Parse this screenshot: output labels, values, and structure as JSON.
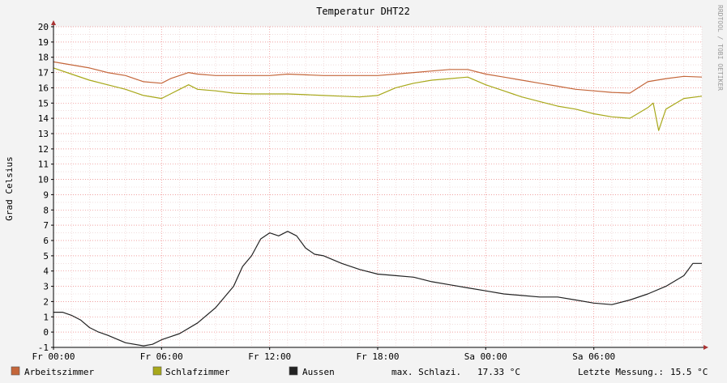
{
  "chart_data": {
    "type": "line",
    "title": "Temperatur DHT22",
    "ylabel": "Grad Celsius",
    "watermark": "RRDTOOL / TOBI OETIKER",
    "ylim": [
      -1,
      20
    ],
    "yticks": [
      -1,
      0,
      1,
      2,
      3,
      4,
      5,
      6,
      7,
      8,
      9,
      10,
      11,
      12,
      13,
      14,
      15,
      16,
      17,
      18,
      19,
      20
    ],
    "xlim_hours": [
      0,
      36
    ],
    "xticks": [
      {
        "h": 0,
        "label": "Fr 00:00"
      },
      {
        "h": 6,
        "label": "Fr 06:00"
      },
      {
        "h": 12,
        "label": "Fr 12:00"
      },
      {
        "h": 18,
        "label": "Fr 18:00"
      },
      {
        "h": 24,
        "label": "Sa 00:00"
      },
      {
        "h": 30,
        "label": "Sa 06:00"
      }
    ],
    "grid": true,
    "series": [
      {
        "name": "Arbeitszimmer",
        "color": "#c4663a",
        "points": [
          [
            0,
            17.7
          ],
          [
            1,
            17.5
          ],
          [
            2,
            17.3
          ],
          [
            3,
            17.0
          ],
          [
            4,
            16.8
          ],
          [
            5,
            16.4
          ],
          [
            6,
            16.3
          ],
          [
            6.5,
            16.6
          ],
          [
            7,
            16.8
          ],
          [
            7.5,
            17.0
          ],
          [
            8,
            16.9
          ],
          [
            9,
            16.8
          ],
          [
            10,
            16.8
          ],
          [
            11,
            16.8
          ],
          [
            12,
            16.8
          ],
          [
            13,
            16.9
          ],
          [
            14,
            16.85
          ],
          [
            15,
            16.8
          ],
          [
            16,
            16.8
          ],
          [
            17,
            16.8
          ],
          [
            18,
            16.8
          ],
          [
            19,
            16.9
          ],
          [
            20,
            17.0
          ],
          [
            21,
            17.1
          ],
          [
            22,
            17.2
          ],
          [
            23,
            17.2
          ],
          [
            24,
            16.9
          ],
          [
            25,
            16.7
          ],
          [
            26,
            16.5
          ],
          [
            27,
            16.3
          ],
          [
            28,
            16.1
          ],
          [
            29,
            15.9
          ],
          [
            30,
            15.8
          ],
          [
            31,
            15.7
          ],
          [
            32,
            15.65
          ],
          [
            33,
            16.4
          ],
          [
            34,
            16.6
          ],
          [
            35,
            16.75
          ],
          [
            36,
            16.7
          ]
        ]
      },
      {
        "name": "Schlafzimmer",
        "color": "#a8a81a",
        "points": [
          [
            0,
            17.3
          ],
          [
            1,
            16.9
          ],
          [
            2,
            16.5
          ],
          [
            3,
            16.2
          ],
          [
            4,
            15.9
          ],
          [
            5,
            15.5
          ],
          [
            6,
            15.3
          ],
          [
            6.5,
            15.6
          ],
          [
            7,
            15.9
          ],
          [
            7.5,
            16.2
          ],
          [
            8,
            15.9
          ],
          [
            9,
            15.8
          ],
          [
            10,
            15.65
          ],
          [
            11,
            15.6
          ],
          [
            12,
            15.6
          ],
          [
            13,
            15.6
          ],
          [
            14,
            15.55
          ],
          [
            15,
            15.5
          ],
          [
            16,
            15.45
          ],
          [
            17,
            15.4
          ],
          [
            18,
            15.5
          ],
          [
            19,
            16.0
          ],
          [
            20,
            16.3
          ],
          [
            21,
            16.5
          ],
          [
            22,
            16.6
          ],
          [
            23,
            16.7
          ],
          [
            24,
            16.2
          ],
          [
            25,
            15.8
          ],
          [
            26,
            15.4
          ],
          [
            27,
            15.1
          ],
          [
            28,
            14.8
          ],
          [
            29,
            14.6
          ],
          [
            30,
            14.3
          ],
          [
            31,
            14.1
          ],
          [
            32,
            14.0
          ],
          [
            33,
            14.7
          ],
          [
            33.3,
            15.0
          ],
          [
            33.6,
            13.2
          ],
          [
            34,
            14.6
          ],
          [
            35,
            15.3
          ],
          [
            36,
            15.45
          ]
        ]
      },
      {
        "name": "Aussen",
        "color": "#222222",
        "points": [
          [
            0,
            1.3
          ],
          [
            0.5,
            1.3
          ],
          [
            1,
            1.1
          ],
          [
            1.5,
            0.8
          ],
          [
            2,
            0.3
          ],
          [
            2.5,
            0.0
          ],
          [
            3,
            -0.2
          ],
          [
            4,
            -0.7
          ],
          [
            5,
            -0.9
          ],
          [
            5.5,
            -0.8
          ],
          [
            6,
            -0.5
          ],
          [
            6.5,
            -0.3
          ],
          [
            7,
            -0.1
          ],
          [
            8,
            0.6
          ],
          [
            9,
            1.6
          ],
          [
            10,
            3.0
          ],
          [
            10.5,
            4.3
          ],
          [
            11,
            5.0
          ],
          [
            11.5,
            6.1
          ],
          [
            12,
            6.5
          ],
          [
            12.5,
            6.3
          ],
          [
            13,
            6.6
          ],
          [
            13.5,
            6.3
          ],
          [
            14,
            5.5
          ],
          [
            14.5,
            5.1
          ],
          [
            15,
            5.0
          ],
          [
            16,
            4.5
          ],
          [
            17,
            4.1
          ],
          [
            18,
            3.8
          ],
          [
            19,
            3.7
          ],
          [
            20,
            3.6
          ],
          [
            21,
            3.3
          ],
          [
            22,
            3.1
          ],
          [
            23,
            2.9
          ],
          [
            24,
            2.7
          ],
          [
            25,
            2.5
          ],
          [
            26,
            2.4
          ],
          [
            27,
            2.3
          ],
          [
            28,
            2.3
          ],
          [
            29,
            2.1
          ],
          [
            30,
            1.9
          ],
          [
            31,
            1.8
          ],
          [
            32,
            2.1
          ],
          [
            33,
            2.5
          ],
          [
            34,
            3.0
          ],
          [
            35,
            3.7
          ],
          [
            35.5,
            4.5
          ],
          [
            36,
            4.5
          ]
        ]
      }
    ],
    "legend": [
      {
        "name": "Arbeitszimmer",
        "color": "#c4663a"
      },
      {
        "name": "Schlafzimmer",
        "color": "#a8a81a"
      },
      {
        "name": "Aussen",
        "color": "#222222"
      }
    ],
    "annotations": {
      "max_label": "max. Schlazi.",
      "max_value": "17.33 °C",
      "last_label": "Letzte Messung.:",
      "last_value": "15.5 °C"
    }
  }
}
